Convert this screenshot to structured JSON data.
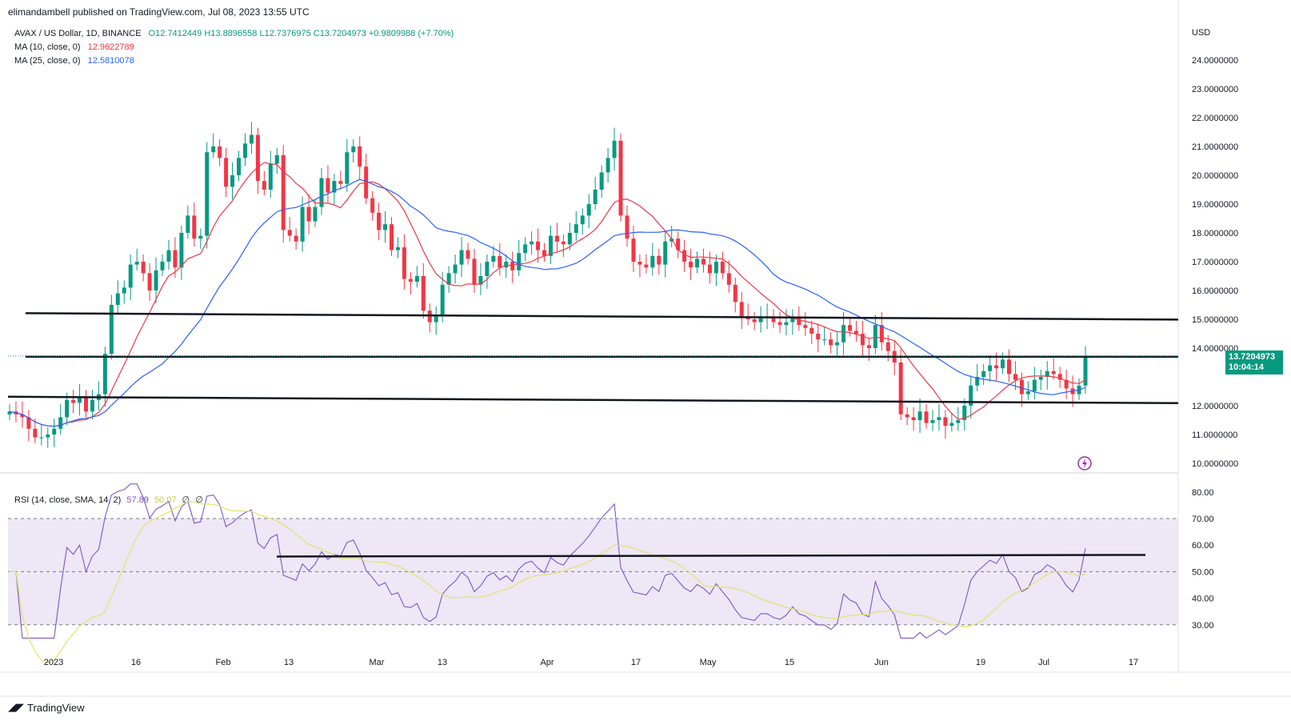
{
  "header": {
    "publisher": "elimandambell published on TradingView.com, Jul 08, 2023 13:55 UTC"
  },
  "legend": {
    "symbol": "AVAX / US Dollar, 1D, BINANCE",
    "open": "O12.7412449",
    "high": "H13.8896558",
    "low": "L12.7376975",
    "close": "C13.7204973",
    "change": "+0.9809988 (+7.70%)",
    "ma10_label": "MA (10, close, 0)",
    "ma10_value": "12.9622789",
    "ma25_label": "MA (25, close, 0)",
    "ma25_value": "12.5810078"
  },
  "rsi_legend": {
    "label": "RSI (14, close, SMA, 14, 2)",
    "rsi": "57.89",
    "sma": "50.07",
    "z1": "∅",
    "z2": "∅"
  },
  "price_axis": {
    "currency": "USD",
    "ticks": [
      "24.0000000",
      "23.0000000",
      "22.0000000",
      "21.0000000",
      "20.0000000",
      "19.0000000",
      "18.0000000",
      "17.0000000",
      "16.0000000",
      "15.0000000",
      "14.0000000",
      "12.0000000",
      "11.0000000",
      "10.0000000"
    ],
    "last_price": "13.7204973",
    "countdown": "10:04:14"
  },
  "rsi_axis": {
    "ticks": [
      "80.00",
      "70.00",
      "60.00",
      "50.00",
      "40.00",
      "30.00"
    ]
  },
  "time_axis": {
    "labels": [
      "2023",
      "16",
      "Feb",
      "13",
      "Mar",
      "13",
      "Apr",
      "17",
      "May",
      "15",
      "Jun",
      "19",
      "Jul",
      "17"
    ]
  },
  "footer": {
    "brand": "TradingView"
  },
  "colors": {
    "up": "#089981",
    "down": "#f23645",
    "ma10": "#f23645",
    "ma25": "#2962ff",
    "rsi": "#7e57c2",
    "rsi_sma": "#e3e36b",
    "rsi_band": "#ede7f6"
  },
  "chart_data": [
    {
      "type": "candlestick",
      "title": "AVAX / US Dollar, 1D, BINANCE",
      "ylabel": "USD",
      "ylim": [
        10,
        24.5
      ],
      "close_sequence_approx": [
        11.8,
        11.7,
        11.6,
        11.2,
        10.9,
        10.9,
        11.0,
        11.2,
        11.6,
        12.2,
        12.1,
        12.3,
        11.8,
        12.2,
        12.4,
        13.8,
        15.5,
        15.9,
        16.1,
        16.9,
        17.0,
        16.6,
        16.0,
        16.7,
        17.0,
        17.4,
        16.8,
        18.0,
        18.6,
        17.8,
        17.9,
        20.8,
        21.0,
        20.6,
        19.6,
        20.0,
        20.6,
        21.1,
        21.4,
        19.8,
        19.5,
        20.4,
        20.7,
        18.1,
        17.9,
        17.7,
        18.9,
        18.4,
        18.9,
        19.9,
        19.4,
        19.8,
        19.7,
        20.8,
        21.0,
        20.3,
        19.2,
        18.7,
        18.1,
        18.3,
        17.4,
        17.5,
        16.4,
        16.3,
        16.5,
        15.3,
        14.9,
        15.1,
        16.2,
        16.6,
        16.9,
        17.4,
        17.1,
        16.2,
        16.5,
        17.0,
        17.2,
        16.8,
        17.0,
        16.7,
        17.3,
        17.6,
        17.7,
        17.4,
        17.2,
        17.9,
        17.7,
        17.6,
        18.0,
        18.3,
        18.6,
        19.0,
        19.5,
        20.1,
        20.6,
        21.2,
        18.6,
        17.8,
        17.0,
        16.9,
        16.8,
        17.2,
        16.9,
        17.7,
        17.8,
        17.4,
        17.0,
        16.8,
        17.1,
        16.9,
        16.6,
        17.0,
        16.6,
        16.2,
        15.6,
        15.1,
        15.0,
        14.9,
        15.1,
        15.1,
        14.9,
        14.8,
        14.9,
        15.1,
        14.8,
        14.7,
        14.5,
        14.3,
        14.3,
        14.1,
        14.2,
        14.8,
        14.6,
        14.5,
        14.1,
        14.0,
        14.8,
        14.2,
        13.9,
        13.5,
        11.7,
        11.6,
        11.5,
        11.8,
        11.4,
        11.5,
        11.6,
        11.3,
        11.4,
        11.5,
        12.0,
        12.7,
        13.0,
        13.2,
        13.4,
        13.3,
        13.6,
        13.1,
        12.9,
        12.4,
        12.5,
        12.9,
        13.0,
        13.2,
        13.1,
        12.9,
        12.6,
        12.4,
        12.7,
        13.72
      ],
      "horizontal_levels": [
        12.2,
        13.7,
        15.1
      ],
      "last_close": 13.7204973
    },
    {
      "type": "line",
      "title": "RSI (14, close, SMA, 14, 2)",
      "ylim": [
        25,
        85
      ],
      "band": [
        30,
        70
      ],
      "midline": 50,
      "horizontal_level": 56,
      "series": [
        {
          "name": "RSI",
          "last": 57.89
        },
        {
          "name": "SMA",
          "last": 50.07
        }
      ]
    }
  ]
}
